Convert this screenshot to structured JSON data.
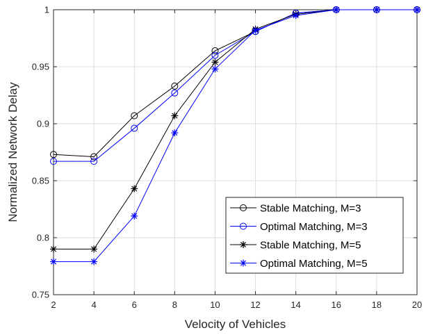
{
  "chart_data": {
    "type": "line",
    "xlabel": "Velocity of Vehicles",
    "ylabel": "Normalized Network Delay",
    "xlim": [
      2,
      20
    ],
    "ylim": [
      0.75,
      1
    ],
    "xticks": [
      2,
      4,
      6,
      8,
      10,
      12,
      14,
      16,
      18,
      20
    ],
    "yticks": [
      0.75,
      0.8,
      0.85,
      0.9,
      0.95,
      1
    ],
    "ytick_labels": [
      "0.75",
      "0.8",
      "0.85",
      "0.9",
      "0.95",
      "1"
    ],
    "grid": true,
    "legend_position": "lower-right",
    "x": [
      2,
      4,
      6,
      8,
      10,
      12,
      14,
      16,
      18,
      20
    ],
    "series": [
      {
        "name": "Stable Matching, M=3",
        "color": "#000000",
        "marker": "circle",
        "values": [
          0.873,
          0.871,
          0.907,
          0.933,
          0.964,
          0.981,
          0.997,
          1.0,
          1.0,
          1.0
        ]
      },
      {
        "name": "Optimal Matching, M=3",
        "color": "#0000ff",
        "marker": "circle",
        "values": [
          0.867,
          0.867,
          0.896,
          0.927,
          0.96,
          0.981,
          0.997,
          1.0,
          1.0,
          1.0
        ]
      },
      {
        "name": "Stable Matching, M=5",
        "color": "#000000",
        "marker": "star",
        "values": [
          0.79,
          0.79,
          0.843,
          0.907,
          0.954,
          0.983,
          0.996,
          1.0,
          1.0,
          1.0
        ]
      },
      {
        "name": "Optimal Matching, M=5",
        "color": "#0000ff",
        "marker": "star",
        "values": [
          0.779,
          0.779,
          0.819,
          0.892,
          0.948,
          0.982,
          0.995,
          1.0,
          1.0,
          1.0
        ]
      }
    ]
  }
}
